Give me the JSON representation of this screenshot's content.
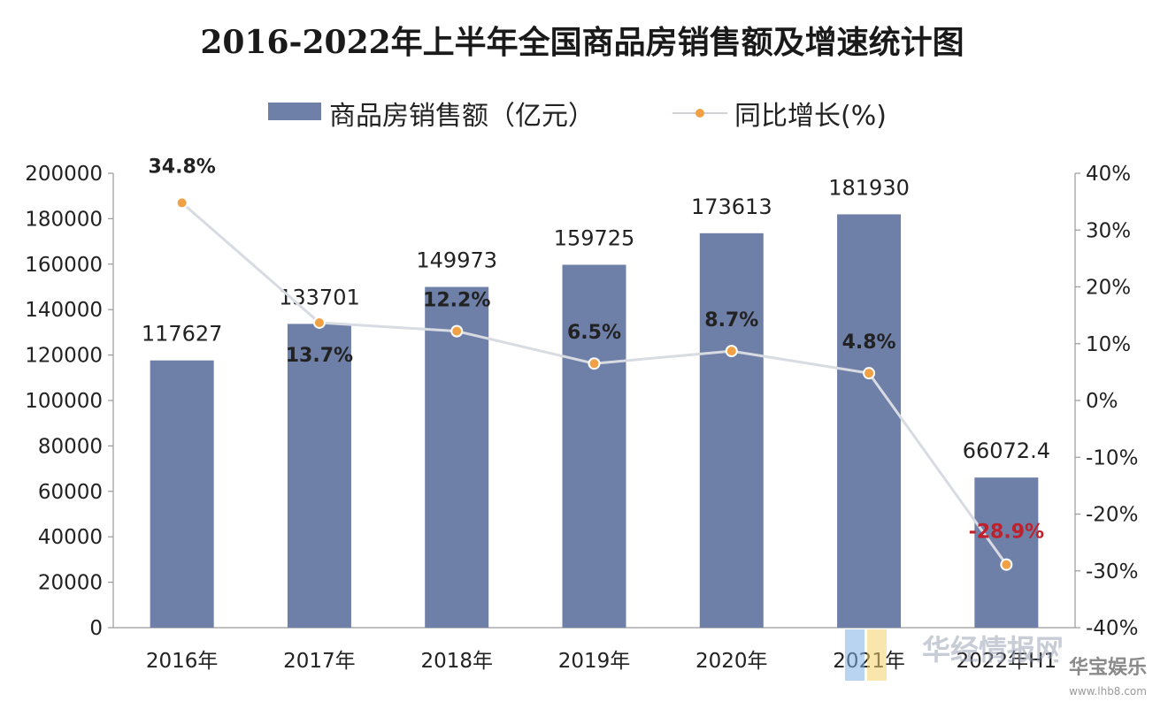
{
  "chart_data": {
    "type": "bar",
    "title": "2016-2022年上半年全国商品房销售额及增速统计图",
    "categories": [
      "2016年",
      "2017年",
      "2018年",
      "2019年",
      "2020年",
      "2021年",
      "2022年H1"
    ],
    "series": [
      {
        "name": "商品房销售额（亿元）",
        "type": "bar",
        "axis": "left",
        "color": "#6e7fa8",
        "values": [
          117627,
          133701,
          149973,
          159725,
          173613,
          181930,
          66072.4
        ],
        "labels": [
          "117627",
          "133701",
          "149973",
          "159725",
          "173613",
          "181930",
          "66072.4"
        ]
      },
      {
        "name": "同比增长(%)",
        "type": "line",
        "axis": "right",
        "line_color": "#d9dbe3",
        "marker_color": "#f0a045",
        "values": [
          34.8,
          13.7,
          12.2,
          6.5,
          8.7,
          4.8,
          -28.9
        ],
        "labels": [
          "34.8%",
          "13.7%",
          "12.2%",
          "6.5%",
          "8.7%",
          "4.8%",
          "-28.9%"
        ],
        "label_colors": [
          "#222222",
          "#222222",
          "#222222",
          "#222222",
          "#222222",
          "#222222",
          "#c0202a"
        ]
      }
    ],
    "left_axis": {
      "ylim": [
        0,
        200000
      ],
      "ticks": [
        "0",
        "20000",
        "40000",
        "60000",
        "80000",
        "100000",
        "120000",
        "140000",
        "160000",
        "180000",
        "200000"
      ]
    },
    "right_axis": {
      "ylim": [
        -40,
        40
      ],
      "ticks": [
        "-40%",
        "-30%",
        "-20%",
        "-10%",
        "0%",
        "10%",
        "20%",
        "30%",
        "40%"
      ]
    },
    "grid": false,
    "legend_position": "top"
  },
  "watermark": {
    "text1": "华经情报网",
    "text2": "华宝娱乐",
    "text3": "www.lhb8.com"
  }
}
